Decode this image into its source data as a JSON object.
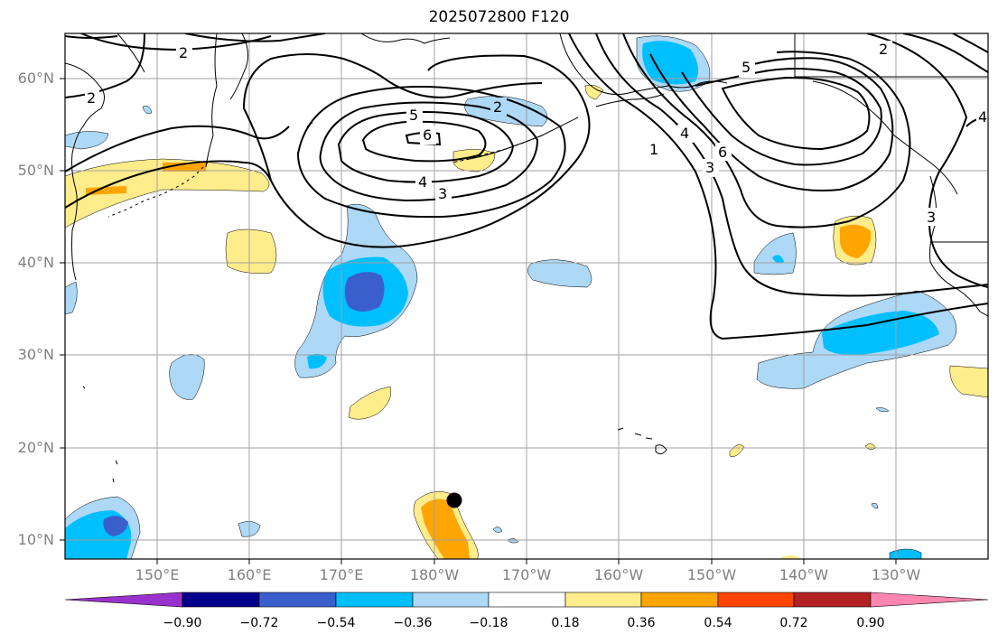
{
  "title": "2025072800 F120",
  "lat_labels": [
    "60°N",
    "50°N",
    "40°N",
    "30°N",
    "20°N",
    "10°N"
  ],
  "lon_labels": [
    "150°E",
    "160°E",
    "170°E",
    "180°W",
    "170°W",
    "160°W",
    "150°W",
    "140°W",
    "130°W"
  ],
  "colorbar": {
    "ticks": [
      "−0.90",
      "−0.72",
      "−0.54",
      "−0.36",
      "−0.18",
      "0.18",
      "0.36",
      "0.54",
      "0.72",
      "0.90"
    ],
    "colors": [
      "#9932cc",
      "#00008b",
      "#3a5fcd",
      "#00bfff",
      "#add8f6",
      "#ffffff",
      "#ffec8b",
      "#ffa500",
      "#ff4500",
      "#b22222",
      "#ff86b0"
    ]
  },
  "contour_labels": [
    "2",
    "2",
    "5",
    "6",
    "4",
    "3",
    "2",
    "5",
    "1",
    "4",
    "3",
    "6",
    "3",
    "2",
    "4"
  ],
  "colors": {
    "frame": "#000000",
    "grid": "#a0a0a0",
    "coast": "#000000",
    "contour": "#000000",
    "marker": "#000000"
  }
}
